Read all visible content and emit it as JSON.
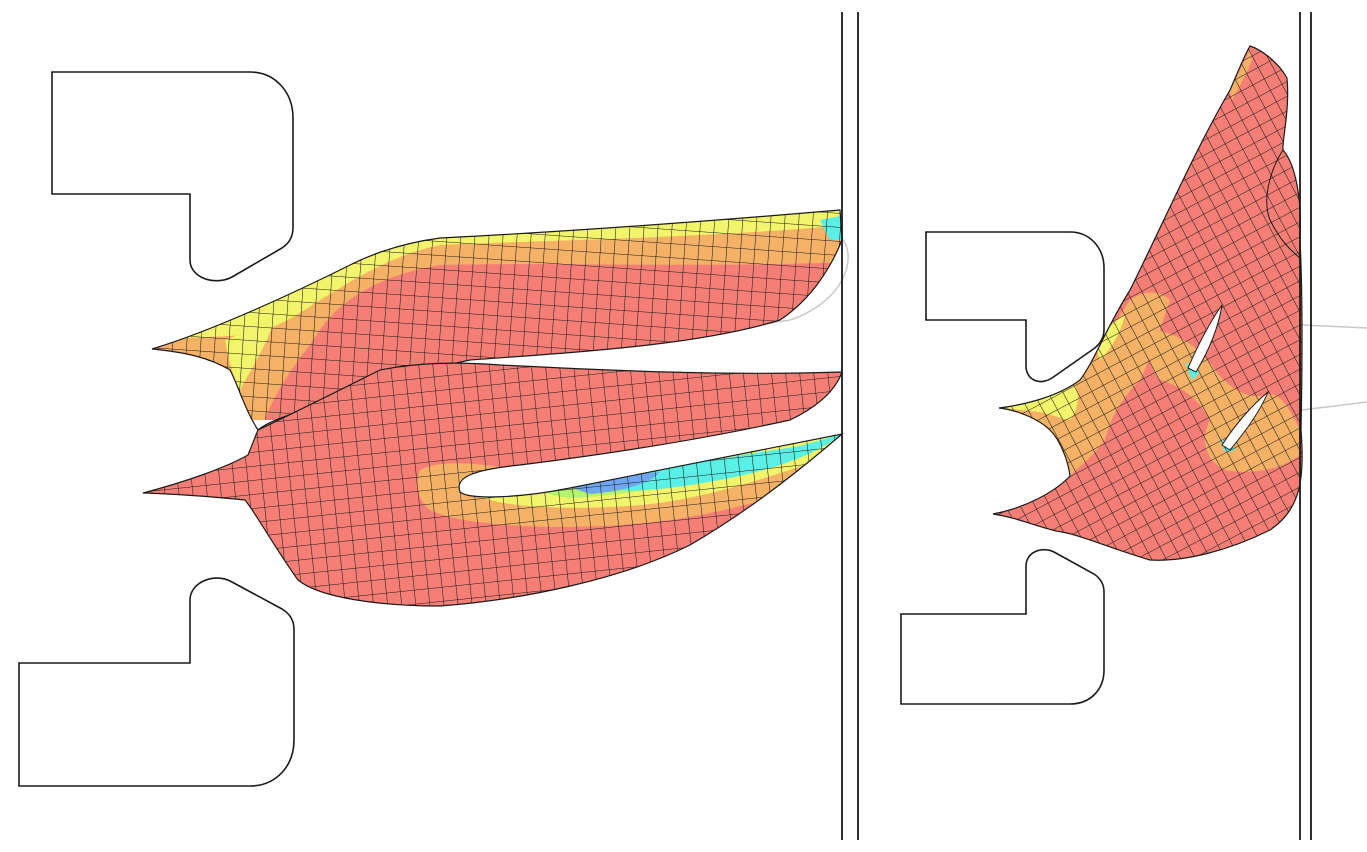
{
  "colors": {
    "background": "#ffffff",
    "outline": "#1a1a1a",
    "mesh_line": "#1a1a1a",
    "ghost_path": "#c8c8c8",
    "high": "#f57f76",
    "mid_high": "#f5b267",
    "mid": "#f2f56b",
    "mid_low": "#b5f56b",
    "low": "#5af0e6",
    "lowest": "#6fa8f0"
  },
  "panels": [
    {
      "label": "",
      "view": "deformed-mesh-left"
    },
    {
      "label": "",
      "view": "deformed-mesh-right"
    }
  ]
}
